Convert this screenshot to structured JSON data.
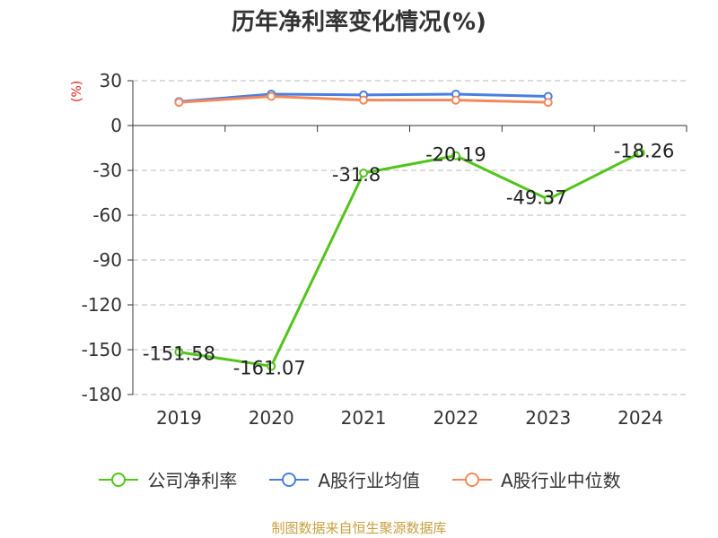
{
  "chart_data": {
    "type": "line",
    "title": "历年净利率变化情况(%)",
    "ylabel": "(%)",
    "categories": [
      "2019",
      "2020",
      "2021",
      "2022",
      "2023",
      "2024"
    ],
    "ylim": [
      -180,
      30
    ],
    "yticks": [
      30,
      0,
      -30,
      -60,
      -90,
      -120,
      -150,
      -180
    ],
    "grid": true,
    "legend_position": "bottom",
    "series": [
      {
        "name": "公司净利率",
        "color": "#52c41a",
        "values": [
          -151.58,
          -161.07,
          -31.8,
          -20.19,
          -49.37,
          -18.26
        ],
        "labels": [
          "-151.58",
          "-161.07",
          "-31.8",
          "-20.19",
          "-49.37",
          "-18.26"
        ]
      },
      {
        "name": "A股行业均值",
        "color": "#4a7fe0",
        "values": [
          16,
          21,
          20.5,
          21,
          19.5,
          null
        ]
      },
      {
        "name": "A股行业中位数",
        "color": "#f08a5d",
        "values": [
          15.5,
          19.5,
          17,
          17,
          15.5,
          null
        ]
      }
    ]
  },
  "legend": [
    {
      "label": "公司净利率",
      "color": "#52c41a"
    },
    {
      "label": "A股行业均值",
      "color": "#4a7fe0"
    },
    {
      "label": "A股行业中位数",
      "color": "#f08a5d"
    }
  ],
  "source": "制图数据来自恒生聚源数据库"
}
